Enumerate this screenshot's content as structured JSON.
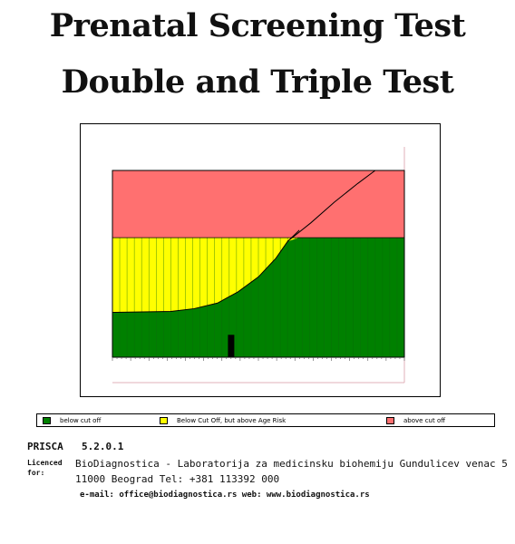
{
  "header": {
    "title_line1": "Prenatal Screening Test",
    "title_line2": "Double and Triple Test"
  },
  "chart_data": {
    "type": "area",
    "title": "",
    "xlabel": "",
    "ylabel": "",
    "zones": [
      {
        "name": "below cut off",
        "color": "#008000"
      },
      {
        "name": "Below Cut Off, but above Age Risk",
        "color": "#ffff00"
      },
      {
        "name": "above cut off",
        "color": "#ff7070"
      }
    ],
    "cutoff_level": 0.64,
    "age_risk_curve": [
      [
        0,
        0.24
      ],
      [
        0.2,
        0.245
      ],
      [
        0.28,
        0.26
      ],
      [
        0.36,
        0.29
      ],
      [
        0.43,
        0.35
      ],
      [
        0.5,
        0.43
      ],
      [
        0.56,
        0.53
      ],
      [
        0.6,
        0.62
      ],
      [
        0.64,
        0.68
      ]
    ],
    "risk_curve": [
      [
        0.6,
        0.62
      ],
      [
        0.68,
        0.72
      ],
      [
        0.76,
        0.83
      ],
      [
        0.84,
        0.93
      ],
      [
        0.9,
        1.0
      ]
    ],
    "patient_marker": {
      "x": 0.405,
      "value": 0.12
    },
    "colors": {
      "green": "#008000",
      "yellow": "#ffff00",
      "red": "#ff7070"
    }
  },
  "legend": {
    "green_label": "below cut off",
    "yellow_label": "Below Cut Off, but above Age Risk",
    "red_label": "above cut off"
  },
  "footer": {
    "prisca": "PRISCA",
    "version": "5.2.0.1",
    "licenced_for": "Licenced for:",
    "line1": "BioDiagnostica - Laboratorija za medicinsku biohemiju Gundulicev venac 5",
    "line2": "11000 Beograd  Tel: +381 113392 000",
    "contact": "e-mail: office@biodiagnostica.rs  web: www.biodiagnostica.rs"
  }
}
